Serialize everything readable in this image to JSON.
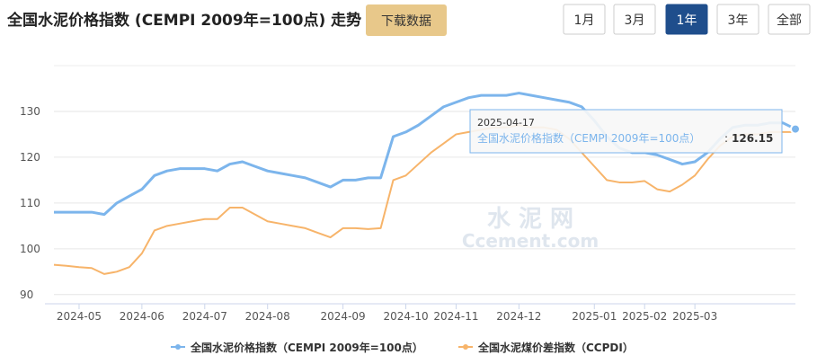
{
  "chart_data": {
    "type": "line",
    "title": "全国水泥价格指数 (CEMPI 2009年=100点) 走势",
    "download_button": "下载数据",
    "range_buttons": [
      "1月",
      "3月",
      "1年",
      "3年",
      "全部"
    ],
    "active_range": 2,
    "watermark": [
      "水 泥 网",
      "Ccement.com"
    ],
    "categories": [
      null,
      null,
      "2024-05",
      null,
      null,
      null,
      null,
      "2024-06",
      null,
      null,
      null,
      null,
      "2024-07",
      null,
      null,
      null,
      null,
      "2024-08",
      null,
      null,
      null,
      null,
      null,
      "2024-09",
      null,
      null,
      null,
      null,
      "2024-10",
      null,
      null,
      null,
      "2024-11",
      null,
      null,
      null,
      null,
      "2024-12",
      null,
      null,
      null,
      null,
      null,
      "2025-01",
      null,
      null,
      null,
      "2025-02",
      null,
      null,
      null,
      "2025-03",
      null,
      null,
      null,
      null,
      null,
      null,
      null,
      null
    ],
    "series": [
      {
        "name": "全国水泥价格指数（CEMPI 2009年=100点）",
        "color": "#7cb5ec",
        "values": [
          108,
          108,
          108,
          108,
          107.5,
          110,
          111.5,
          113,
          116,
          117,
          117.5,
          117.5,
          117.5,
          117,
          118.5,
          119,
          118,
          117,
          116.5,
          116,
          115.5,
          114.5,
          113.5,
          115,
          115,
          115.5,
          115.5,
          124.5,
          125.5,
          127,
          129,
          131,
          132,
          133,
          133.5,
          133.5,
          133.5,
          134,
          133.5,
          133,
          132.5,
          132,
          131,
          128,
          124.5,
          122,
          121,
          121,
          120.5,
          119.5,
          118.5,
          119,
          121,
          124,
          126.5,
          127,
          127,
          127.5,
          127.5,
          126.15
        ]
      },
      {
        "name": "全国水泥煤价差指数（CCPDI）",
        "color": "#f7b46a",
        "values": [
          96.5,
          96.3,
          96,
          95.8,
          94.5,
          95,
          96,
          99,
          104,
          105,
          105.5,
          106,
          106.5,
          106.5,
          109,
          109,
          107.5,
          106,
          105.5,
          105,
          104.5,
          103.5,
          102.5,
          104.5,
          104.5,
          104.3,
          104.5,
          115,
          116,
          118.5,
          121,
          123,
          125,
          125.5,
          126,
          126.5,
          126.5,
          127,
          126.5,
          126.5,
          126,
          124,
          121,
          118,
          115,
          114.5,
          114.5,
          114.8,
          113,
          112.5,
          114,
          116,
          119.5,
          122.5,
          124.5,
          125,
          125,
          125.5,
          125.5,
          125.5
        ]
      }
    ],
    "tooltip": {
      "x": "2025-04-17",
      "separator": ":"
    },
    "ylim": [
      88,
      140
    ],
    "yticks": [
      90,
      100,
      110,
      120,
      130
    ],
    "grid": true,
    "legend": "bottom"
  }
}
